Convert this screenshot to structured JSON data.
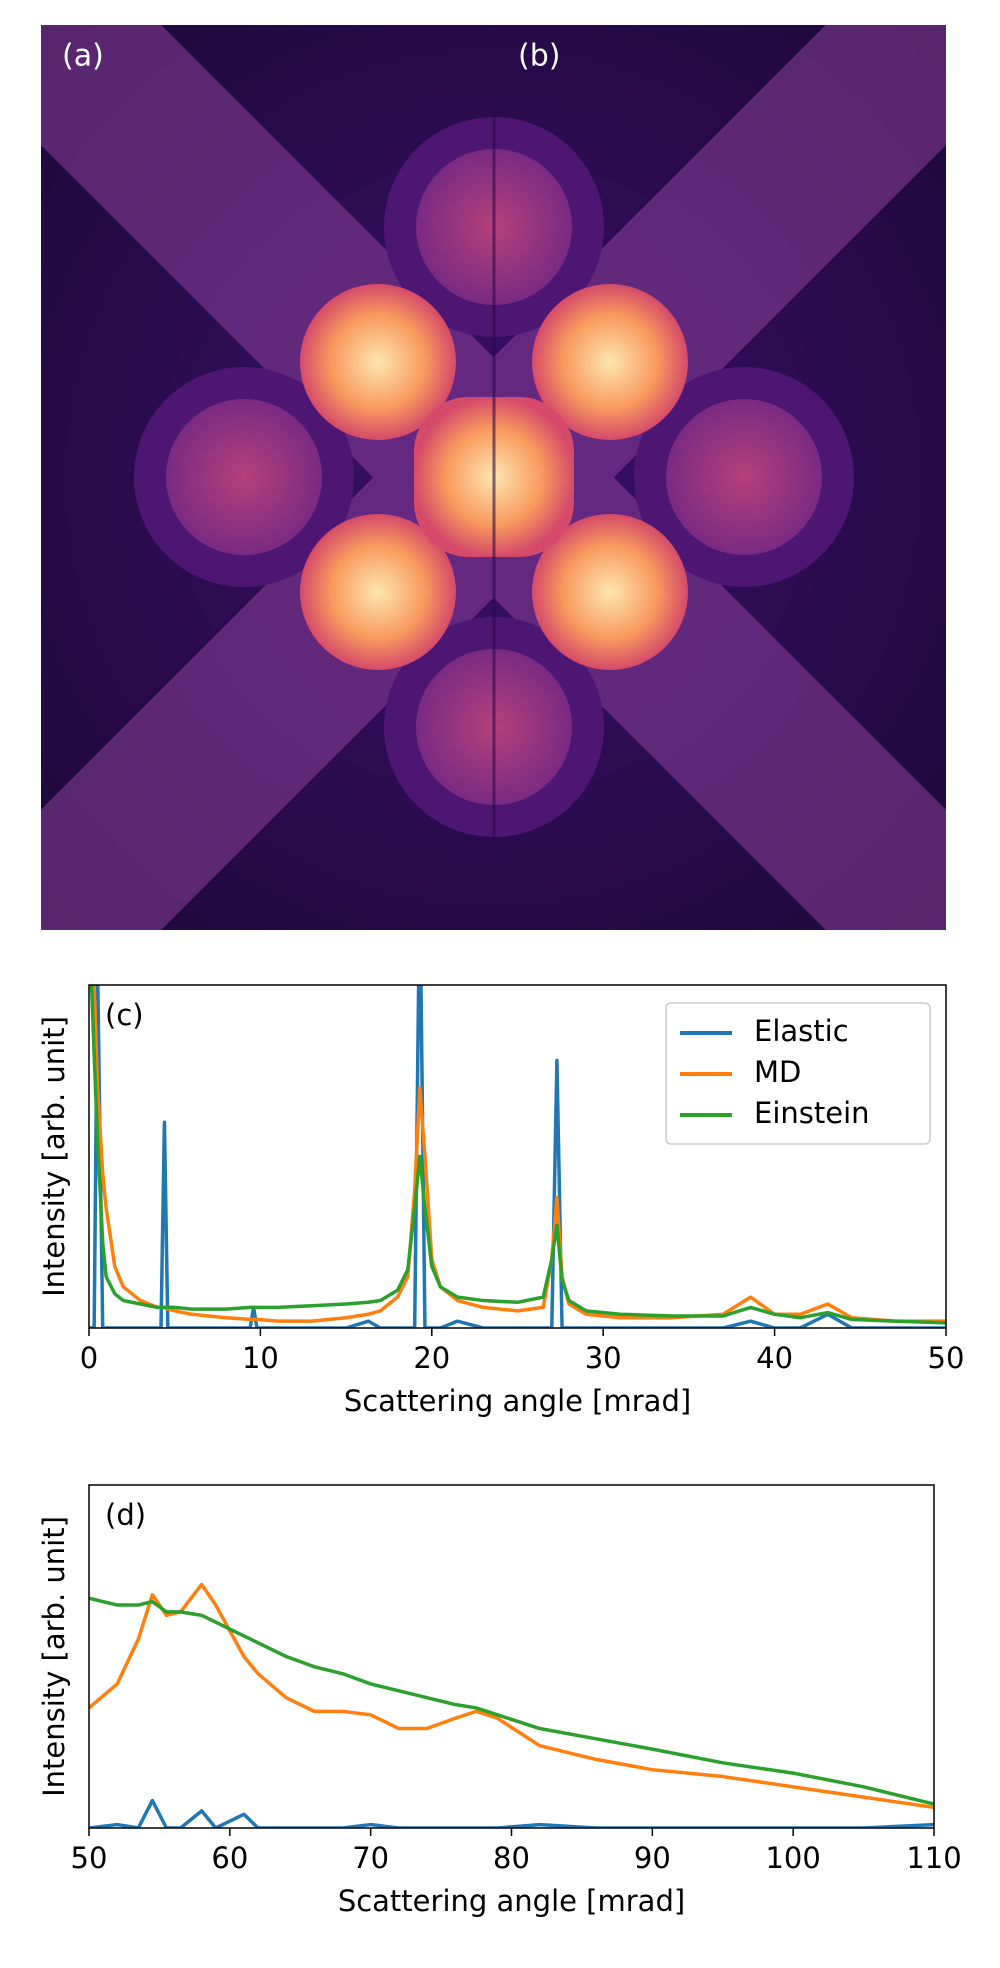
{
  "image": {
    "labels": [
      "(a)",
      "(b)"
    ]
  },
  "chart_data": [
    {
      "type": "line",
      "panel_label": "(c)",
      "xlabel": "Scattering angle [mrad]",
      "ylabel": "Intensity [arb. unit]",
      "xlim": [
        0,
        50
      ],
      "xticks": [
        0,
        10,
        20,
        30,
        40,
        50
      ],
      "ylim": [
        0,
        100
      ],
      "yticks": [],
      "legend": "upper right",
      "x": [
        0,
        0.3,
        0.5,
        0.8,
        1,
        1.5,
        2,
        3,
        4,
        4.2,
        4.4,
        4.6,
        5,
        6,
        8,
        9.4,
        9.6,
        9.8,
        11,
        13,
        15,
        16.3,
        17,
        18,
        18.6,
        19.0,
        19.3,
        19.6,
        20.0,
        20.5,
        21.5,
        23,
        25,
        26.5,
        27.0,
        27.3,
        27.6,
        28,
        29,
        31,
        34,
        37,
        38.6,
        40,
        41.5,
        43.1,
        44.5,
        47,
        50
      ],
      "series": [
        {
          "name": "Elastic",
          "color": "#1f77b4",
          "values": [
            0,
            0,
            105,
            0,
            0,
            0,
            0,
            0,
            0,
            0,
            60,
            0,
            0,
            0,
            0,
            0,
            6,
            0,
            0,
            0,
            0,
            2,
            0,
            0,
            0,
            0,
            130,
            0,
            0,
            0,
            2,
            0,
            0,
            0,
            0,
            78,
            0,
            0,
            0,
            0,
            0,
            0,
            2,
            0,
            0,
            4,
            0,
            0,
            0
          ]
        },
        {
          "name": "MD",
          "color": "#ff7f0e",
          "values": [
            120,
            100,
            70,
            45,
            35,
            18,
            12,
            8,
            6,
            6,
            6,
            5.5,
            5,
            4,
            3,
            2.5,
            2.5,
            2.5,
            2,
            2,
            3,
            4,
            5,
            9,
            15,
            40,
            70,
            50,
            20,
            12,
            8,
            6,
            5,
            6,
            20,
            38,
            15,
            7,
            4,
            3,
            3,
            4,
            9,
            4,
            4,
            7,
            3,
            2,
            2
          ]
        },
        {
          "name": "Einstein",
          "color": "#2ca02c",
          "values": [
            120,
            80,
            55,
            25,
            15,
            10,
            8,
            7,
            6,
            6,
            6,
            6,
            6,
            5.5,
            5.5,
            6,
            6,
            6,
            6,
            6.5,
            7,
            7.5,
            8,
            11,
            17,
            35,
            50,
            35,
            18,
            12,
            9,
            8,
            7.5,
            9,
            20,
            30,
            14,
            8,
            5,
            4,
            3.5,
            3.5,
            6,
            4,
            3,
            4.5,
            2.5,
            2,
            1.5
          ]
        }
      ]
    },
    {
      "type": "line",
      "panel_label": "(d)",
      "xlabel": "Scattering angle [mrad]",
      "ylabel": "Intensity [arb. unit]",
      "xlim": [
        50,
        110
      ],
      "xticks": [
        50,
        60,
        70,
        80,
        90,
        100,
        110
      ],
      "ylim": [
        0,
        100
      ],
      "yticks": [],
      "x": [
        50,
        52,
        53.5,
        54.5,
        55.5,
        56.5,
        58,
        59,
        61,
        62,
        64,
        66,
        68,
        70,
        72,
        74,
        76,
        77.5,
        79,
        82,
        86,
        90,
        95,
        100,
        105,
        110
      ],
      "series": [
        {
          "color": "#1f77b4",
          "values": [
            0,
            1,
            0,
            8,
            0,
            0,
            5,
            0,
            4,
            0,
            0,
            0,
            0,
            1,
            0,
            0,
            0,
            0,
            0,
            1,
            0,
            0,
            0,
            0,
            0,
            1
          ]
        },
        {
          "color": "#ff7f0e",
          "values": [
            35,
            42,
            55,
            68,
            62,
            63,
            71,
            65,
            50,
            45,
            38,
            34,
            34,
            33,
            29,
            29,
            32,
            34,
            32,
            24,
            20,
            17,
            15,
            12,
            9,
            6
          ]
        },
        {
          "color": "#2ca02c",
          "values": [
            67,
            65,
            65,
            66,
            63,
            63,
            62,
            60,
            56,
            54,
            50,
            47,
            45,
            42,
            40,
            38,
            36,
            35,
            33,
            29,
            26,
            23,
            19,
            16,
            12,
            7
          ]
        }
      ]
    }
  ]
}
